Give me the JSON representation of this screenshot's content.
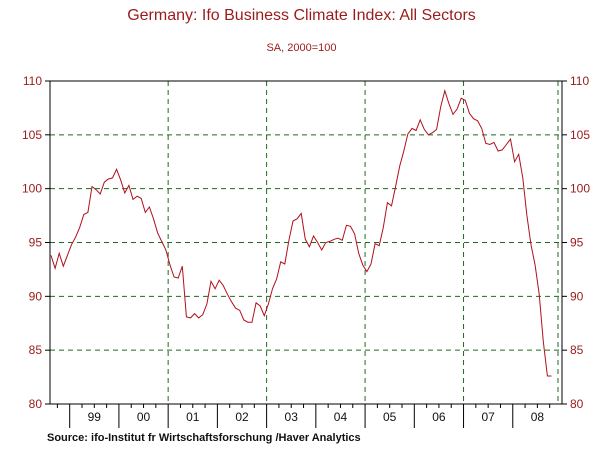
{
  "chart_data": {
    "type": "line",
    "title": "Germany: Ifo Business Climate Index: All Sectors",
    "subtitle": "SA, 2000=100",
    "source": "Source:  ifo-Institut fr Wirtschaftsforschung /Haver Analytics",
    "xlabel": "",
    "ylabel": "",
    "ylim": [
      80,
      110
    ],
    "y_ticks": [
      80,
      85,
      90,
      95,
      100,
      105,
      110
    ],
    "y_tick_labels": [
      "80",
      "85",
      "90",
      "95",
      "100",
      "105",
      "110"
    ],
    "x_range": [
      1998.6,
      2009.0
    ],
    "year_labels": [
      {
        "text": "99",
        "center": 1999.5
      },
      {
        "text": "00",
        "center": 2000.5
      },
      {
        "text": "01",
        "center": 2001.5
      },
      {
        "text": "02",
        "center": 2002.5
      },
      {
        "text": "03",
        "center": 2003.5
      },
      {
        "text": "04",
        "center": 2004.5
      },
      {
        "text": "05",
        "center": 2005.5
      },
      {
        "text": "06",
        "center": 2006.5
      },
      {
        "text": "07",
        "center": 2007.5
      },
      {
        "text": "08",
        "center": 2008.5
      }
    ],
    "year_boundaries": [
      1999,
      2000,
      2001,
      2002,
      2003,
      2004,
      2005,
      2006,
      2007,
      2008
    ],
    "gridline_years": [
      2001,
      2003,
      2005,
      2007,
      2009
    ],
    "grid": true,
    "colors": {
      "line": "#b0101c",
      "grid": "#1f6b1f",
      "text": "#9b1b1b",
      "axis": "#000000"
    },
    "series": [
      {
        "name": "Ifo Business Climate Index",
        "start": 1998.62,
        "step": 0.08333,
        "values": [
          93.8,
          92.6,
          94.0,
          92.8,
          93.8,
          94.8,
          95.5,
          96.4,
          97.6,
          97.8,
          100.2,
          99.9,
          99.5,
          100.6,
          100.9,
          101.0,
          101.8,
          100.8,
          99.6,
          100.3,
          99.0,
          99.3,
          99.1,
          97.8,
          98.3,
          97.2,
          95.9,
          95.1,
          94.3,
          92.9,
          91.8,
          91.7,
          92.8,
          88.1,
          88.0,
          88.4,
          88.0,
          88.3,
          89.3,
          91.4,
          90.7,
          91.5,
          91.0,
          90.2,
          89.5,
          88.9,
          88.7,
          87.8,
          87.6,
          87.6,
          89.4,
          89.1,
          88.2,
          89.3,
          90.7,
          91.6,
          93.2,
          93.0,
          95.2,
          97.0,
          97.2,
          97.7,
          95.3,
          94.6,
          95.6,
          95.0,
          94.3,
          95.0,
          95.1,
          95.3,
          95.4,
          95.2,
          96.6,
          96.5,
          95.8,
          94.0,
          92.9,
          92.3,
          93.0,
          94.9,
          94.7,
          96.4,
          98.7,
          98.4,
          100.2,
          102.1,
          103.5,
          105.1,
          105.6,
          105.4,
          106.4,
          105.5,
          105.0,
          105.2,
          105.5,
          107.6,
          109.1,
          107.9,
          106.9,
          107.4,
          108.4,
          108.2,
          107.0,
          106.5,
          106.3,
          105.6,
          104.2,
          104.1,
          104.3,
          103.5,
          103.6,
          104.1,
          104.6,
          102.5,
          103.2,
          101.0,
          97.5,
          94.8,
          92.9,
          90.2,
          85.8,
          82.6,
          82.6
        ]
      }
    ]
  }
}
